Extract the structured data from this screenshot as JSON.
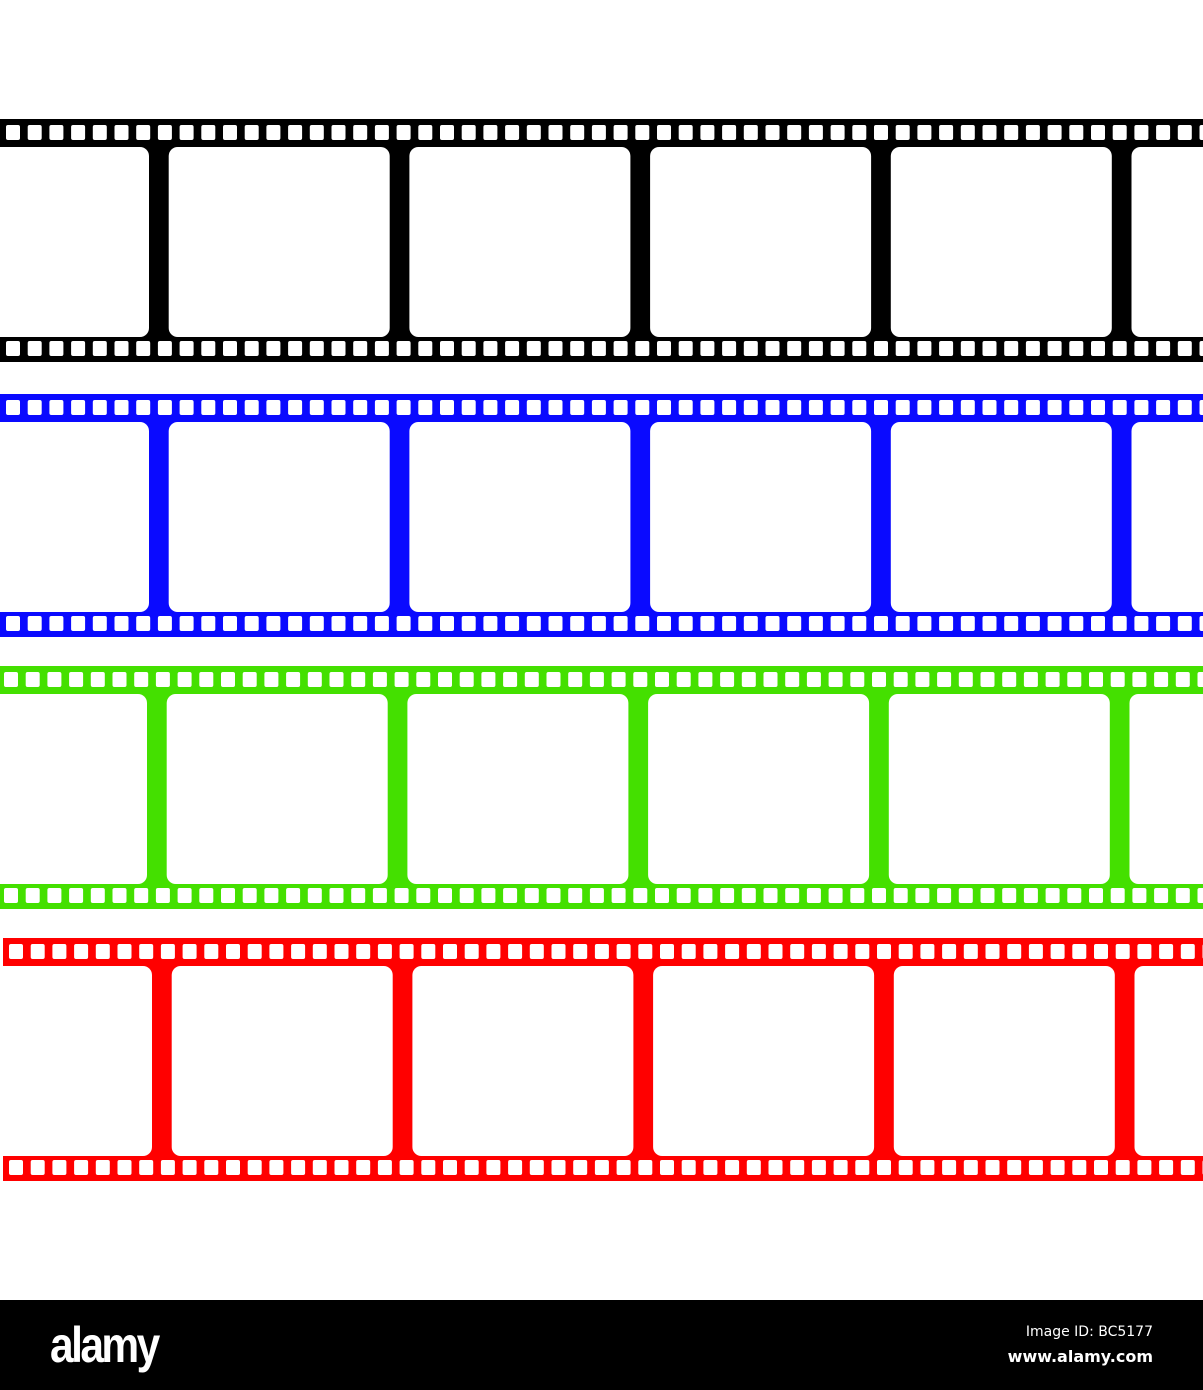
{
  "strips": [
    {
      "name": "black",
      "color": "#000000"
    },
    {
      "name": "blue",
      "color": "#0a0aff"
    },
    {
      "name": "green",
      "color": "#44e000"
    },
    {
      "name": "red",
      "color": "#ff0000"
    }
  ],
  "footer": {
    "logo": "alamy",
    "image_id": "Image ID: BC5177",
    "site": "www.alamy.com"
  }
}
